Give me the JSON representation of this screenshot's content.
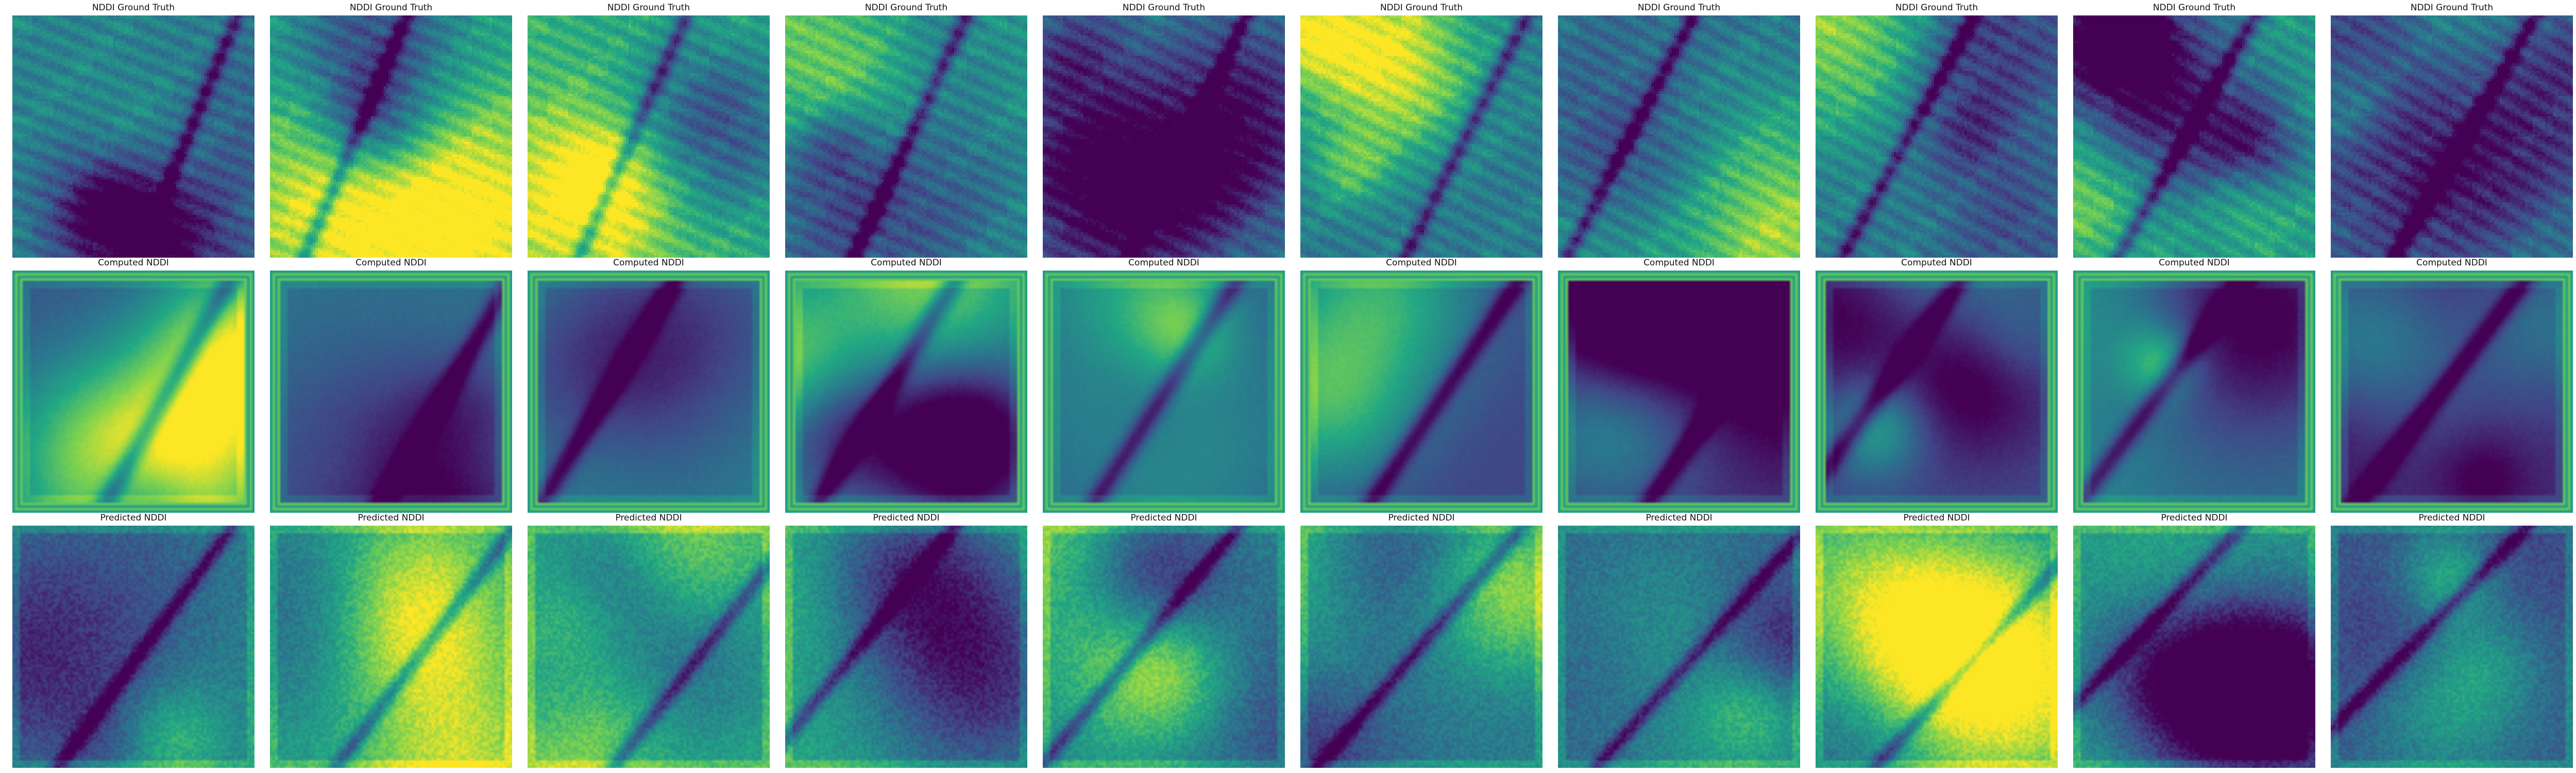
{
  "figure": {
    "colormap": "viridis",
    "rows": [
      {
        "title": "NDDI Ground Truth",
        "count": 10
      },
      {
        "title": "Computed NDDI",
        "count": 10
      },
      {
        "title": "Predicted NDDI",
        "count": 10
      }
    ]
  },
  "colors": {
    "viridis_stops": [
      "#440154",
      "#414487",
      "#2a788e",
      "#22a884",
      "#7ad151",
      "#fde725"
    ]
  }
}
